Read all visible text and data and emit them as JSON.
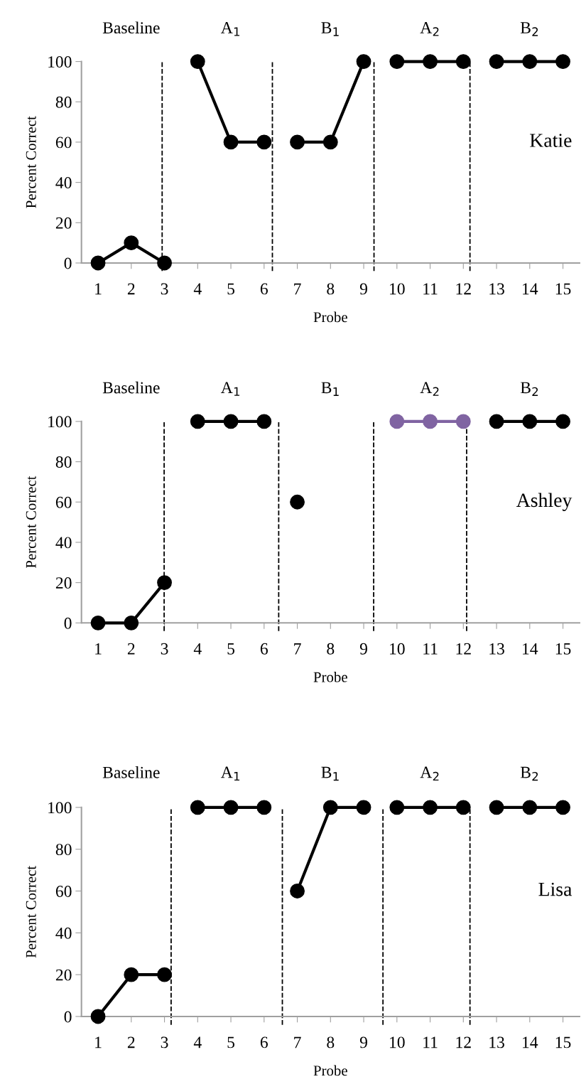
{
  "chart_data": [
    {
      "type": "line",
      "xlabel": "Probe",
      "ylabel": "Percent Correct",
      "annotations": [
        "Baseline",
        "A$_{1}$",
        "B$_{1}$",
        "A$_{2}$",
        "B$_{2}$",
        "Katie"
      ],
      "xlim": [
        0.5,
        15.5
      ],
      "xticks": [
        1,
        2,
        3,
        4,
        5,
        6,
        7,
        8,
        9,
        10,
        11,
        12,
        13,
        14,
        15
      ],
      "ylim": [
        0,
        100
      ],
      "yticks": [
        0,
        20,
        40,
        60,
        80,
        100
      ],
      "marker": "circle",
      "line_style": "solid",
      "series": [
        {
          "color": "#000000",
          "x": [
            1,
            2,
            3
          ],
          "values": [
            0,
            10,
            0
          ]
        },
        {
          "color": "#000000",
          "x": [
            4,
            5,
            6
          ],
          "values": [
            100,
            60,
            60
          ]
        },
        {
          "color": "#000000",
          "x": [
            7,
            8,
            9
          ],
          "values": [
            60,
            60,
            100
          ]
        },
        {
          "color": "#000000",
          "x": [
            10,
            11,
            12
          ],
          "values": [
            100,
            100,
            100
          ]
        },
        {
          "color": "#000000",
          "x": [
            13,
            14,
            15
          ],
          "values": [
            100,
            100,
            100
          ]
        }
      ],
      "ref_lines": [
        {
          "axis": "x",
          "value": 2.93,
          "color": "#000000",
          "line_style": "dashed"
        },
        {
          "axis": "x",
          "value": 6.25,
          "color": "#000000",
          "line_style": "dashed"
        },
        {
          "axis": "x",
          "value": 9.31,
          "color": "#000000",
          "line_style": "dashed"
        },
        {
          "axis": "x",
          "value": 12.2,
          "color": "#000000",
          "line_style": "dashed"
        }
      ]
    },
    {
      "type": "line",
      "xlabel": "Probe",
      "ylabel": "Percent Correct",
      "annotations": [
        "Baseline",
        "A$_{1}$",
        "B$_{1}$",
        "A$_{2}$",
        "B$_{2}$",
        "Ashley"
      ],
      "xlim": [
        0.5,
        15.5
      ],
      "xticks": [
        1,
        2,
        3,
        4,
        5,
        6,
        7,
        8,
        9,
        10,
        11,
        12,
        13,
        14,
        15
      ],
      "ylim": [
        0,
        100
      ],
      "yticks": [
        0,
        20,
        40,
        60,
        80,
        100
      ],
      "marker": "circle",
      "line_style": "solid",
      "series": [
        {
          "color": "#000000",
          "x": [
            1,
            2,
            3
          ],
          "values": [
            0,
            0,
            20
          ]
        },
        {
          "color": "#000000",
          "x": [
            4,
            5,
            6
          ],
          "values": [
            100,
            100,
            100
          ]
        },
        {
          "color": "#000000",
          "x": [
            7
          ],
          "values": [
            60
          ]
        },
        {
          "color": "#8064a2",
          "x": [
            10,
            11,
            12
          ],
          "values": [
            100,
            100,
            100
          ]
        },
        {
          "color": "#000000",
          "x": [
            13,
            14,
            15
          ],
          "values": [
            100,
            100,
            100
          ]
        }
      ],
      "ref_lines": [
        {
          "axis": "x",
          "value": 2.99,
          "color": "#000000",
          "line_style": "dashed"
        },
        {
          "axis": "x",
          "value": 6.44,
          "color": "#000000",
          "line_style": "dashed"
        },
        {
          "axis": "x",
          "value": 9.3,
          "color": "#000000",
          "line_style": "dashed"
        },
        {
          "axis": "x",
          "value": 12.1,
          "color": "#000000",
          "line_style": "dashed"
        }
      ]
    },
    {
      "type": "line",
      "xlabel": "Probe",
      "ylabel": "Percent Correct",
      "annotations": [
        "Baseline",
        "A$_{1}$",
        "B$_{1}$",
        "A$_{2}$",
        "B$_{2}$",
        "Lisa"
      ],
      "xlim": [
        0.5,
        15.5
      ],
      "xticks": [
        1,
        2,
        3,
        4,
        5,
        6,
        7,
        8,
        9,
        10,
        11,
        12,
        13,
        14,
        15
      ],
      "ylim": [
        0,
        100
      ],
      "yticks": [
        0,
        20,
        40,
        60,
        80,
        100
      ],
      "marker": "circle",
      "line_style": "solid",
      "series": [
        {
          "color": "#000000",
          "x": [
            1,
            2,
            3
          ],
          "values": [
            0,
            20,
            20
          ]
        },
        {
          "color": "#000000",
          "x": [
            4,
            5,
            6
          ],
          "values": [
            100,
            100,
            100
          ]
        },
        {
          "color": "#000000",
          "x": [
            7,
            8,
            9
          ],
          "values": [
            60,
            100,
            100
          ]
        },
        {
          "color": "#000000",
          "x": [
            10,
            11,
            12
          ],
          "values": [
            100,
            100,
            100
          ]
        },
        {
          "color": "#000000",
          "x": [
            13,
            14,
            15
          ],
          "values": [
            100,
            100,
            100
          ]
        }
      ],
      "ref_lines": [
        {
          "axis": "x",
          "value": 3.2,
          "color": "#000000",
          "line_style": "dashed"
        },
        {
          "axis": "x",
          "value": 6.55,
          "color": "#000000",
          "line_style": "dashed"
        },
        {
          "axis": "x",
          "value": 9.58,
          "color": "#000000",
          "line_style": "dashed"
        },
        {
          "axis": "x",
          "value": 12.2,
          "color": "#000000",
          "line_style": "dashed"
        }
      ]
    }
  ]
}
